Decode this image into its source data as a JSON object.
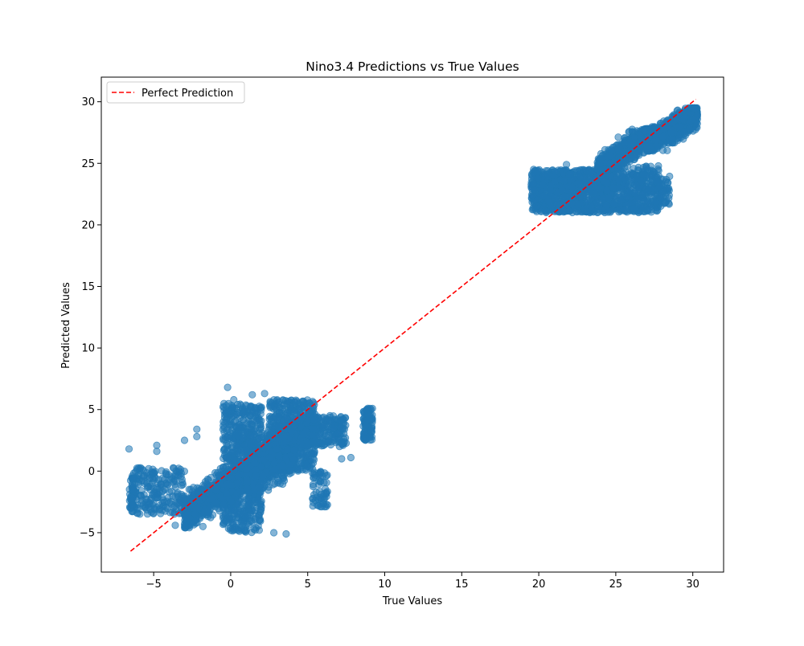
{
  "chart_data": {
    "type": "scatter",
    "title": "Nino3.4 Predictions vs True Values",
    "xlabel": "True Values",
    "ylabel": "Predicted Values",
    "xlim": [
      -8.4,
      32
    ],
    "ylim": [
      -8.2,
      32
    ],
    "xticks": [
      -5,
      0,
      5,
      10,
      15,
      20,
      25,
      30
    ],
    "yticks": [
      -5,
      0,
      5,
      10,
      15,
      20,
      25,
      30
    ],
    "xtick_labels": [
      "−5",
      "0",
      "5",
      "10",
      "15",
      "20",
      "25",
      "30"
    ],
    "ytick_labels": [
      "−5",
      "0",
      "5",
      "10",
      "15",
      "20",
      "25",
      "30"
    ],
    "grid": false,
    "legend": {
      "placement": "upper-left",
      "entries": [
        "Perfect Prediction"
      ]
    },
    "colors": {
      "points": "#1f77b4",
      "reference_line": "#ff0000"
    },
    "series": [
      {
        "kind": "scatter",
        "point_opacity": 0.55,
        "clusters": [
          {
            "x": [
              -6.6,
              -6.2
            ],
            "y": [
              -3.3,
              -0.3
            ],
            "n": 40,
            "shape": "uniform"
          },
          {
            "x": [
              -6.5,
              -3.0
            ],
            "y": [
              -3.5,
              0.3
            ],
            "n": 220,
            "shape": "uniform"
          },
          {
            "x": [
              -3.0,
              1.2
            ],
            "y": [
              -4.6,
              0.8
            ],
            "n": 800,
            "shape": "linear",
            "slope": 0.85,
            "intercept": -1.0,
            "spread": 1.2
          },
          {
            "x": [
              -0.5,
              2.0
            ],
            "y": [
              -5.0,
              5.5
            ],
            "n": 700,
            "shape": "uniform"
          },
          {
            "x": [
              1.0,
              4.2
            ],
            "y": [
              -5.1,
              4.8
            ],
            "n": 900,
            "shape": "linear",
            "slope": 0.7,
            "intercept": -0.8,
            "spread": 1.7
          },
          {
            "x": [
              2.5,
              5.5
            ],
            "y": [
              0.0,
              5.8
            ],
            "n": 500,
            "shape": "uniform"
          },
          {
            "x": [
              4.5,
              7.5
            ],
            "y": [
              2.0,
              4.5
            ],
            "n": 250,
            "shape": "uniform"
          },
          {
            "x": [
              5.3,
              6.3
            ],
            "y": [
              -2.9,
              0.0
            ],
            "n": 60,
            "shape": "uniform"
          },
          {
            "x": [
              8.6,
              9.2
            ],
            "y": [
              2.5,
              5.1
            ],
            "n": 90,
            "shape": "uniform"
          },
          {
            "x": [
              19.5,
              24.8
            ],
            "y": [
              21.0,
              24.5
            ],
            "n": 900,
            "shape": "uniform"
          },
          {
            "x": [
              24.2,
              27.8
            ],
            "y": [
              21.0,
              24.8
            ],
            "n": 500,
            "shape": "uniform"
          },
          {
            "x": [
              23.8,
              27.5
            ],
            "y": [
              24.5,
              27.8
            ],
            "n": 700,
            "shape": "linear",
            "slope": 0.9,
            "intercept": 3.0,
            "spread": 0.9
          },
          {
            "x": [
              27.0,
              30.3
            ],
            "y": [
              26.0,
              29.5
            ],
            "n": 900,
            "shape": "linear",
            "slope": 0.75,
            "intercept": 6.3,
            "spread": 0.8
          },
          {
            "x": [
              27.6,
              28.5
            ],
            "y": [
              21.5,
              24.0
            ],
            "n": 60,
            "shape": "uniform"
          }
        ],
        "outliers": [
          [
            -6.6,
            1.8
          ],
          [
            -4.8,
            2.1
          ],
          [
            -4.8,
            1.6
          ],
          [
            -3.0,
            2.5
          ],
          [
            -2.2,
            3.4
          ],
          [
            -2.2,
            2.8
          ],
          [
            -0.2,
            6.8
          ],
          [
            0.2,
            5.8
          ],
          [
            1.4,
            6.2
          ],
          [
            2.2,
            6.3
          ],
          [
            4.2,
            5.6
          ],
          [
            7.2,
            1.0
          ],
          [
            7.8,
            1.1
          ],
          [
            -3.6,
            -4.4
          ],
          [
            -3.0,
            -4.3
          ],
          [
            -1.8,
            -4.5
          ],
          [
            0.0,
            -4.8
          ],
          [
            2.8,
            -5.0
          ],
          [
            3.6,
            -5.1
          ],
          [
            6.2,
            -2.7
          ],
          [
            26.2,
            21.3
          ],
          [
            21.8,
            24.9
          ]
        ]
      },
      {
        "kind": "line",
        "name": "Perfect Prediction",
        "style": "dashed",
        "x": [
          -6.5,
          30.2
        ],
        "y": [
          -6.5,
          30.2
        ]
      }
    ]
  }
}
